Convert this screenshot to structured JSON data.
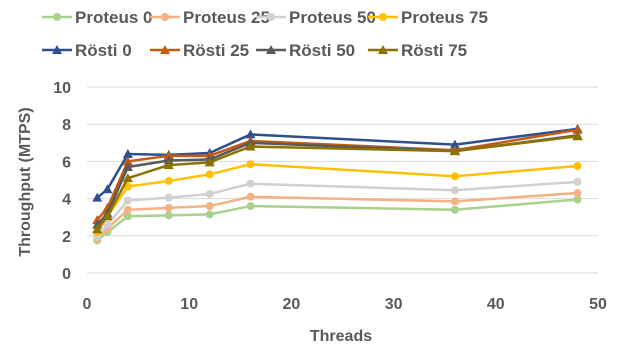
{
  "chart_data": {
    "type": "line",
    "xlabel": "Threads",
    "ylabel": "Throughput (MTPS)",
    "xlim": [
      0,
      50
    ],
    "ylim": [
      0,
      10
    ],
    "xticks": [
      "0",
      "10",
      "20",
      "30",
      "40",
      "50"
    ],
    "yticks": [
      "0",
      "2",
      "4",
      "6",
      "8",
      "10"
    ],
    "grid": "horizontal",
    "legend_position": "top",
    "x": [
      1,
      2,
      4,
      8,
      12,
      16,
      36,
      48
    ],
    "series": [
      {
        "name": "Proteus 0",
        "color": "#a9d18e",
        "marker": "circle",
        "values": [
          1.75,
          2.2,
          3.05,
          3.1,
          3.15,
          3.6,
          3.4,
          3.95
        ]
      },
      {
        "name": "Proteus 25",
        "color": "#f4b183",
        "marker": "circle",
        "values": [
          1.85,
          2.4,
          3.4,
          3.5,
          3.6,
          4.1,
          3.85,
          4.3
        ]
      },
      {
        "name": "Proteus 50",
        "color": "#d0d0d0",
        "marker": "circle",
        "values": [
          1.95,
          2.6,
          3.9,
          4.05,
          4.25,
          4.8,
          4.45,
          4.9
        ]
      },
      {
        "name": "Proteus 75",
        "color": "#ffc000",
        "marker": "circle",
        "values": [
          2.2,
          3.05,
          4.65,
          4.95,
          5.3,
          5.85,
          5.2,
          5.75
        ]
      },
      {
        "name": "Rösti 0",
        "color": "#2f4f8f",
        "marker": "triangle",
        "values": [
          4.05,
          4.5,
          6.4,
          6.35,
          6.45,
          7.45,
          6.9,
          7.75
        ]
      },
      {
        "name": "Rösti 25",
        "color": "#c55a11",
        "marker": "triangle",
        "values": [
          2.85,
          3.5,
          6.0,
          6.3,
          6.3,
          7.1,
          6.6,
          7.7
        ]
      },
      {
        "name": "Rösti 50",
        "color": "#595959",
        "marker": "triangle",
        "values": [
          2.6,
          3.2,
          5.7,
          6.05,
          6.1,
          7.0,
          6.55,
          7.4
        ]
      },
      {
        "name": "Rösti 75",
        "color": "#8c7200",
        "marker": "triangle",
        "values": [
          2.35,
          3.05,
          5.1,
          5.8,
          5.95,
          6.8,
          6.55,
          7.35
        ]
      }
    ]
  }
}
